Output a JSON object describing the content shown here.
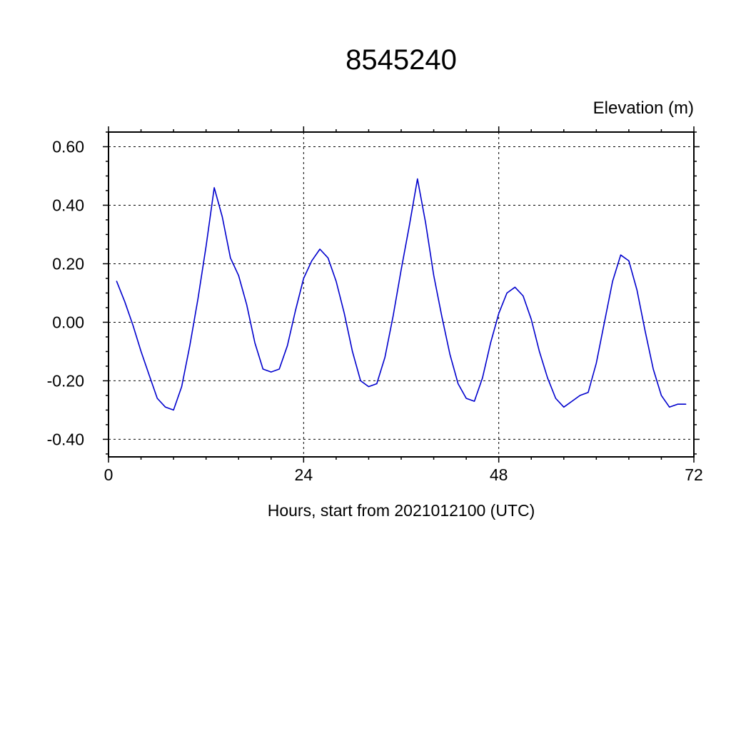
{
  "chart_data": {
    "type": "line",
    "title": "8545240",
    "ylabel": "Elevation (m)",
    "xlabel": "Hours, start from 2021012100 (UTC)",
    "x": [
      1,
      2,
      3,
      4,
      5,
      6,
      7,
      8,
      9,
      10,
      11,
      12,
      13,
      14,
      15,
      16,
      17,
      18,
      19,
      20,
      21,
      22,
      23,
      24,
      25,
      26,
      27,
      28,
      29,
      30,
      31,
      32,
      33,
      34,
      35,
      36,
      37,
      38,
      39,
      40,
      41,
      42,
      43,
      44,
      45,
      46,
      47,
      48,
      49,
      50,
      51,
      52,
      53,
      54,
      55,
      56,
      57,
      58,
      59,
      60,
      61,
      62,
      63,
      64,
      65,
      66,
      67,
      68,
      69,
      70,
      71
    ],
    "values": [
      0.14,
      0.07,
      -0.01,
      -0.1,
      -0.18,
      -0.26,
      -0.29,
      -0.3,
      -0.22,
      -0.08,
      0.08,
      0.26,
      0.46,
      0.36,
      0.22,
      0.16,
      0.06,
      -0.07,
      -0.16,
      -0.17,
      -0.16,
      -0.08,
      0.04,
      0.15,
      0.21,
      0.25,
      0.22,
      0.14,
      0.03,
      -0.1,
      -0.2,
      -0.22,
      -0.21,
      -0.12,
      0.02,
      0.18,
      0.33,
      0.49,
      0.34,
      0.16,
      0.02,
      -0.11,
      -0.21,
      -0.26,
      -0.27,
      -0.19,
      -0.07,
      0.03,
      0.1,
      0.12,
      0.09,
      0.01,
      -0.1,
      -0.19,
      -0.26,
      -0.29,
      -0.27,
      -0.25,
      -0.24,
      -0.14,
      0.0,
      0.14,
      0.23,
      0.21,
      0.11,
      -0.03,
      -0.16,
      -0.25,
      -0.29,
      -0.28,
      -0.28
    ],
    "xlim": [
      0,
      72
    ],
    "ylim": [
      -0.46,
      0.65
    ],
    "xticks": [
      0,
      24,
      48,
      72
    ],
    "xtick_labels": [
      "0",
      "24",
      "48",
      "72"
    ],
    "yticks": [
      -0.4,
      -0.2,
      0.0,
      0.2,
      0.4,
      0.6
    ],
    "ytick_labels": [
      "-0.40",
      "-0.20",
      "0.00",
      "0.20",
      "0.40",
      "0.60"
    ],
    "x_minor_step": 4,
    "y_minor_step": 0.05,
    "grid": "dashed",
    "grid_color": "#000000",
    "line_color": "#0000cd",
    "frame_color": "#000000",
    "legend": "none"
  }
}
